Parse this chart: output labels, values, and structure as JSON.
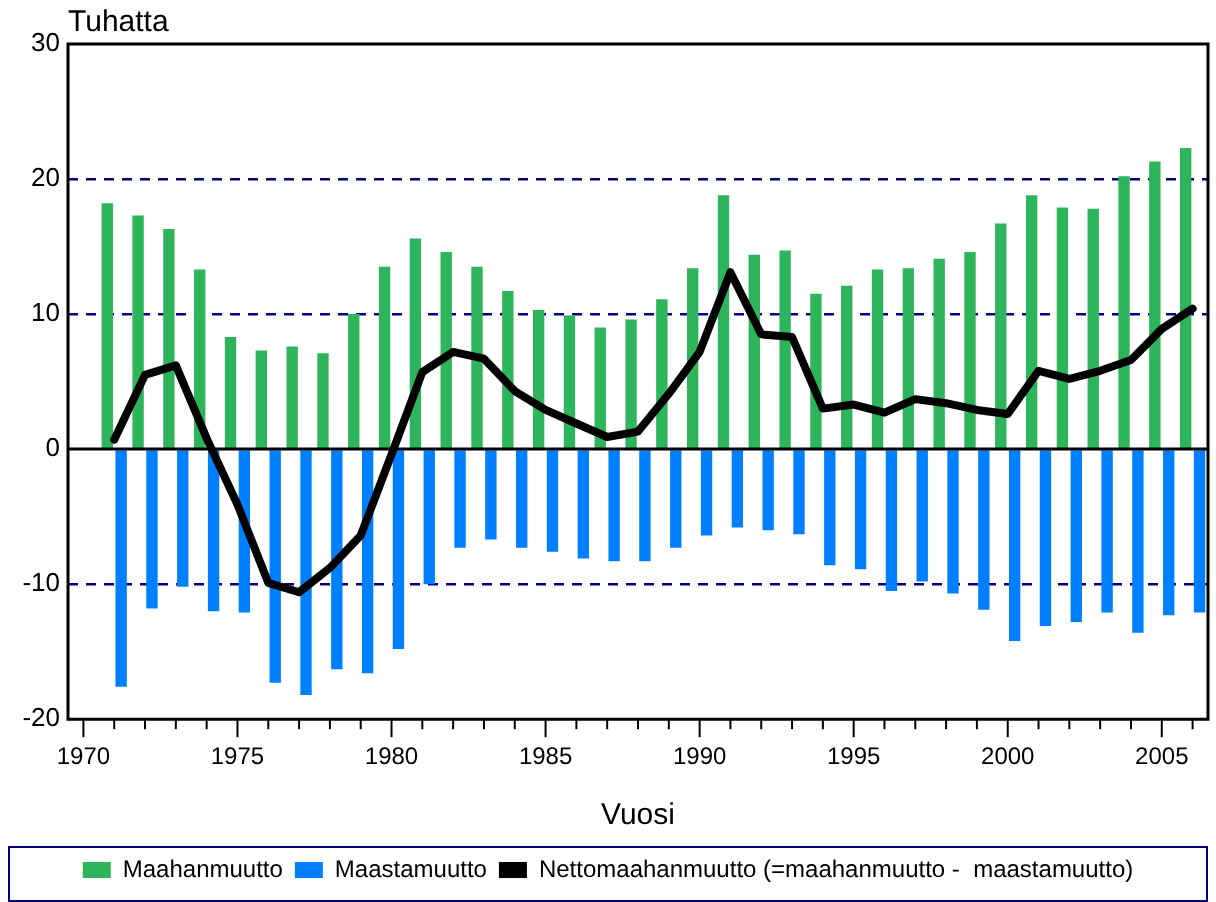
{
  "chart_data": {
    "type": "bar",
    "ylabel": "Tuhatta",
    "xlabel": "Vuosi",
    "x": [
      1971,
      1972,
      1973,
      1974,
      1975,
      1976,
      1977,
      1978,
      1979,
      1980,
      1981,
      1982,
      1983,
      1984,
      1985,
      1986,
      1987,
      1988,
      1989,
      1990,
      1991,
      1992,
      1993,
      1994,
      1995,
      1996,
      1997,
      1998,
      1999,
      2000,
      2001,
      2002,
      2003,
      2004,
      2005,
      2006
    ],
    "series": [
      {
        "name": "Maahanmuutto",
        "color": "#2eb45a",
        "values": [
          18.2,
          17.3,
          16.3,
          13.3,
          8.3,
          7.3,
          7.6,
          7.1,
          10.0,
          13.5,
          15.6,
          14.6,
          13.5,
          11.7,
          10.3,
          9.9,
          9.0,
          9.6,
          11.1,
          13.4,
          18.8,
          14.4,
          14.7,
          11.5,
          12.1,
          13.3,
          13.4,
          14.1,
          14.6,
          16.7,
          18.8,
          17.9,
          17.8,
          20.2,
          21.3,
          22.3
        ]
      },
      {
        "name": "Maastamuutto",
        "color": "#0080ff",
        "values": [
          -17.6,
          -11.8,
          -10.2,
          -12.0,
          -12.1,
          -17.3,
          -18.2,
          -16.3,
          -16.6,
          -14.8,
          -10.0,
          -7.3,
          -6.7,
          -7.3,
          -7.6,
          -8.1,
          -8.3,
          -8.3,
          -7.3,
          -6.4,
          -5.8,
          -6.0,
          -6.3,
          -8.6,
          -8.9,
          -10.5,
          -9.8,
          -10.7,
          -11.9,
          -14.2,
          -13.1,
          -12.8,
          -12.1,
          -13.6,
          -12.3,
          -12.1
        ]
      },
      {
        "name": "Nettomaahanmuutto (=maahanmuutto -  maastamuutto)",
        "type": "line",
        "color": "#000000",
        "values": [
          0.7,
          5.5,
          6.2,
          0.8,
          -4.1,
          -9.9,
          -10.6,
          -8.8,
          -6.4,
          -0.4,
          5.7,
          7.2,
          6.7,
          4.3,
          2.9,
          1.9,
          0.9,
          1.3,
          4.1,
          7.2,
          13.1,
          8.5,
          8.3,
          3.0,
          3.3,
          2.7,
          3.7,
          3.4,
          2.9,
          2.6,
          5.8,
          5.2,
          5.8,
          6.6,
          8.9,
          10.4
        ]
      }
    ],
    "xlim": [
      1969.5,
      2006.5
    ],
    "xticks": [
      1970,
      {
        "value": 1971,
        "label": null
      },
      {
        "value": 1972,
        "label": null
      },
      {
        "value": 1973,
        "label": null
      },
      {
        "value": 1974,
        "label": null
      },
      1975,
      {
        "value": 1976,
        "label": null
      },
      {
        "value": 1977,
        "label": null
      },
      {
        "value": 1978,
        "label": null
      },
      {
        "value": 1979,
        "label": null
      },
      1980,
      {
        "value": 1981,
        "label": null
      },
      {
        "value": 1982,
        "label": null
      },
      {
        "value": 1983,
        "label": null
      },
      {
        "value": 1984,
        "label": null
      },
      1985,
      {
        "value": 1986,
        "label": null
      },
      {
        "value": 1987,
        "label": null
      },
      {
        "value": 1988,
        "label": null
      },
      {
        "value": 1989,
        "label": null
      },
      1990,
      {
        "value": 1991,
        "label": null
      },
      {
        "value": 1992,
        "label": null
      },
      {
        "value": 1993,
        "label": null
      },
      {
        "value": 1994,
        "label": null
      },
      1995,
      {
        "value": 1996,
        "label": null
      },
      {
        "value": 1997,
        "label": null
      },
      {
        "value": 1998,
        "label": null
      },
      {
        "value": 1999,
        "label": null
      },
      2000,
      {
        "value": 2001,
        "label": null
      },
      {
        "value": 2002,
        "label": null
      },
      {
        "value": 2003,
        "label": null
      },
      {
        "value": 2004,
        "label": null
      },
      2005,
      {
        "value": 2006,
        "label": null
      }
    ],
    "ylim": [
      -20,
      30
    ],
    "yticks": [
      -20,
      -10,
      0,
      10,
      20,
      30
    ],
    "grid": "y",
    "legend": "bottom",
    "marker": "none",
    "line_style": "solid"
  }
}
